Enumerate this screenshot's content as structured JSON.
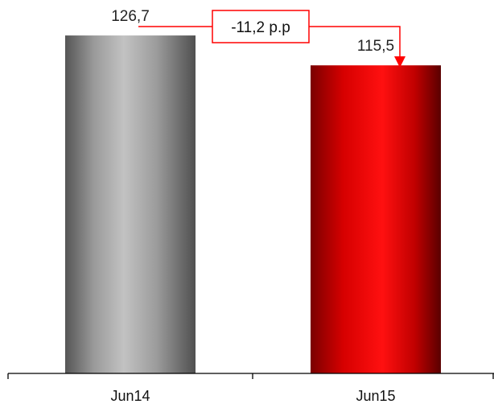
{
  "chart_data": {
    "type": "bar",
    "categories": [
      "Jun14",
      "Jun15"
    ],
    "values": [
      126.7,
      115.5
    ],
    "value_labels": [
      "126,7",
      "115,5"
    ],
    "ylim": [
      0,
      140
    ],
    "grid": false,
    "colors": [
      "#a6a6a6",
      "#ff0000"
    ],
    "annotation": {
      "text": "-11,2 p.p",
      "from_category": "Jun14",
      "to_category": "Jun15",
      "color": "#ff0000"
    }
  }
}
